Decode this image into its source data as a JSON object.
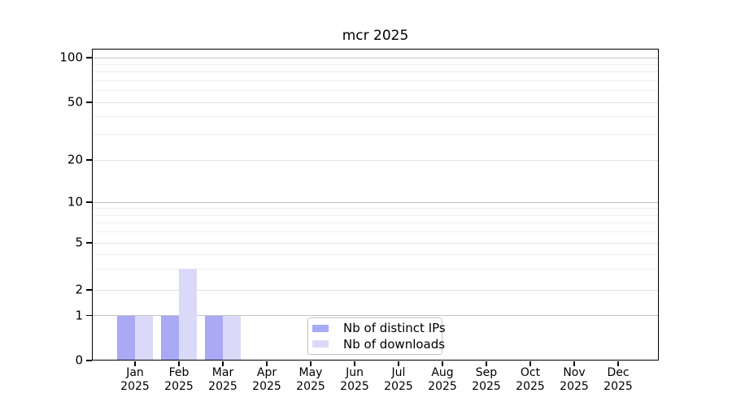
{
  "chart_data": {
    "type": "bar",
    "title": "mcr 2025",
    "x_axis": {
      "categories": [
        "Jan",
        "Feb",
        "Mar",
        "Apr",
        "May",
        "Jun",
        "Jul",
        "Aug",
        "Sep",
        "Oct",
        "Nov",
        "Dec"
      ],
      "year": "2025"
    },
    "y_axis": {
      "scale": "symlog",
      "ticks": [
        0,
        1,
        2,
        5,
        10,
        20,
        50,
        100
      ],
      "minor_ticks": [
        3,
        4,
        6,
        7,
        8,
        9,
        30,
        40,
        60,
        70,
        80,
        90
      ],
      "lim": [
        0,
        115
      ]
    },
    "series": [
      {
        "name": "Nb of distinct IPs",
        "color": "#a9a9f6",
        "values": [
          1,
          1,
          1,
          0,
          0,
          0,
          0,
          0,
          0,
          0,
          0,
          0
        ]
      },
      {
        "name": "Nb of downloads",
        "color": "#dadaf8",
        "values": [
          1,
          3,
          1,
          0,
          0,
          0,
          0,
          0,
          0,
          0,
          0,
          0
        ]
      }
    ],
    "grid": true,
    "legend_position": "lower-center",
    "colors": {
      "axis": "#000000",
      "background": "#ffffff",
      "grid_major": "#c3c3c3",
      "grid_mid": "#e3e3e3",
      "grid_minor": "#efefef"
    }
  }
}
